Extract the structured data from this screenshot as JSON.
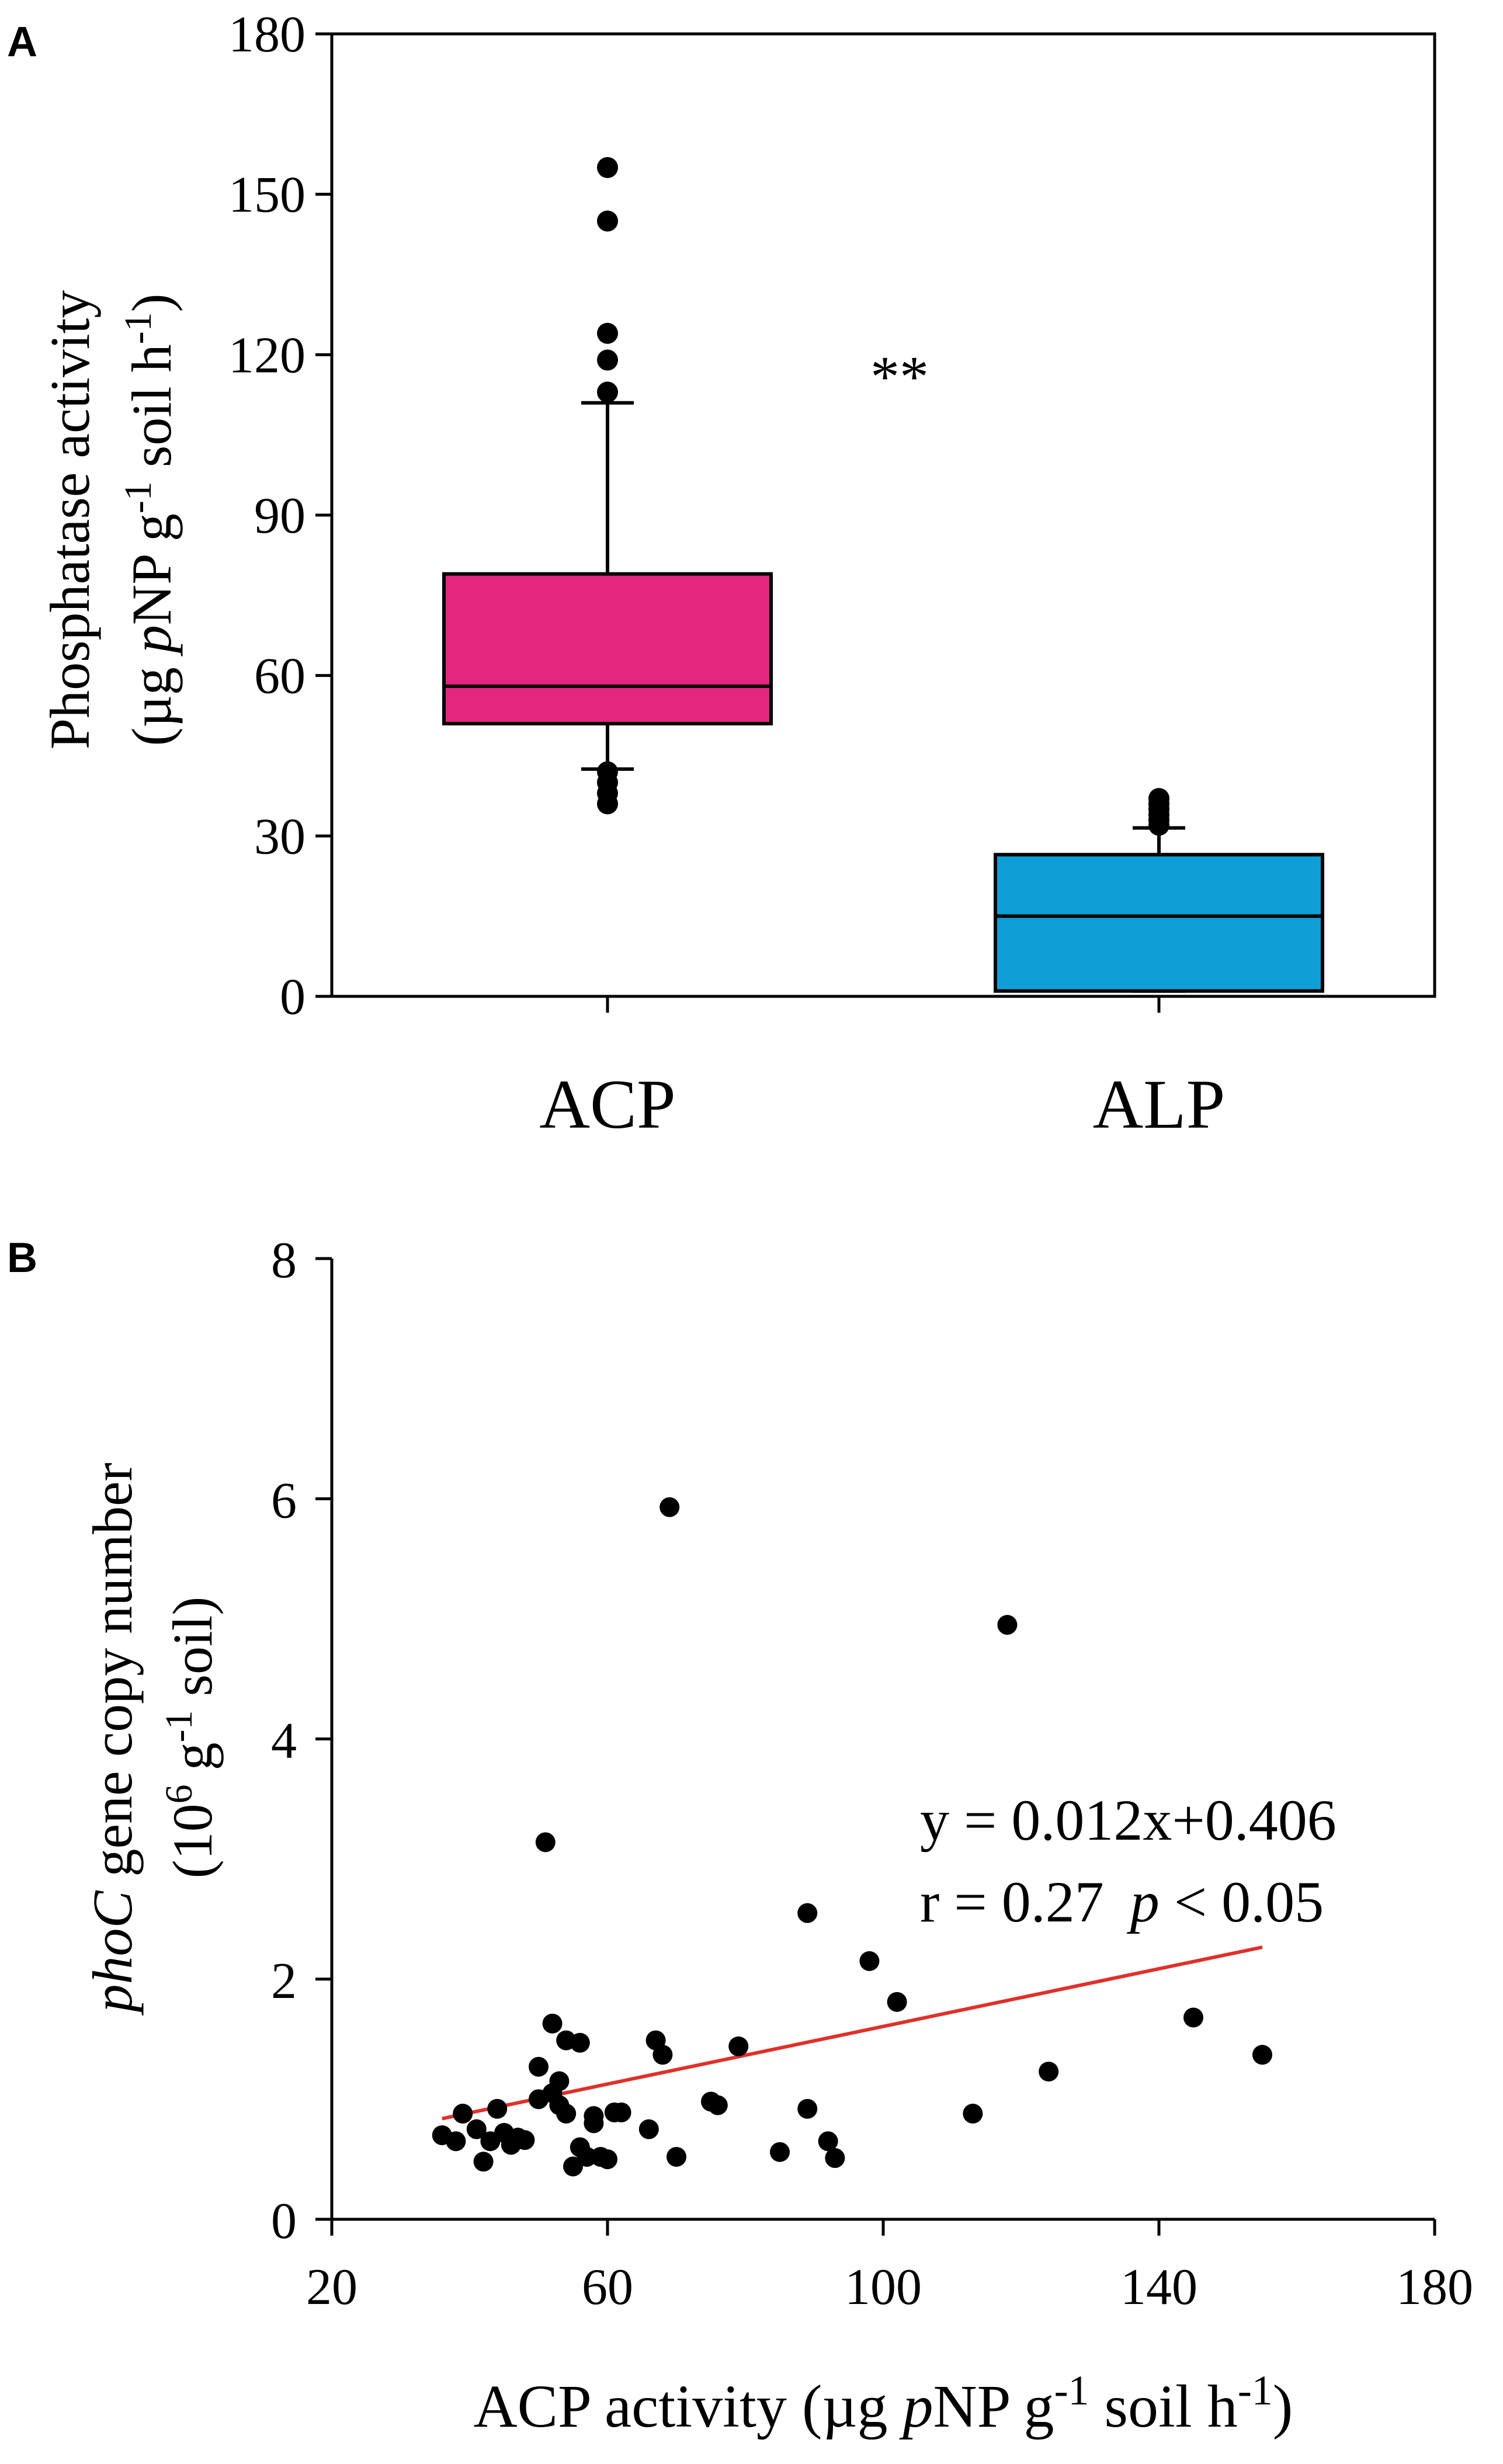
{
  "panels": {
    "a": "A",
    "b": "B"
  },
  "chart_data": [
    {
      "type": "box",
      "ylabel": {
        "line1": "Phosphatase activity",
        "line2_prefix": "(µg ",
        "line2_italic": "p",
        "line2_mid": "NP g",
        "line2_sup1": "-1",
        "line2_mid2": " soil h",
        "line2_sup2": "-1",
        "line2_suffix": ")"
      },
      "ylim": [
        0,
        180
      ],
      "yticks": [
        0,
        30,
        60,
        90,
        120,
        150,
        180
      ],
      "significance": "**",
      "colors": {
        "ACP": "#e4267f",
        "ALP": "#0f9ed6"
      },
      "categories": [
        "ACP",
        "ALP"
      ],
      "boxes": [
        {
          "name": "ACP",
          "whisker_low": 42.5,
          "q1": 51,
          "median": 58,
          "q3": 79,
          "whisker_high": 111,
          "outliers_high": [
            113,
            119,
            124,
            145,
            155
          ],
          "outliers_low": [
            36,
            38,
            40,
            42
          ]
        },
        {
          "name": "ALP",
          "whisker_low": 1,
          "q1": 1,
          "median": 15,
          "q3": 26.5,
          "whisker_high": 31.5,
          "outliers_high": [
            32,
            33,
            34,
            35,
            36,
            37
          ],
          "outliers_low": []
        }
      ]
    },
    {
      "type": "scatter",
      "xlabel": {
        "prefix": "ACP activity (µg ",
        "italic": "p",
        "mid": "NP g",
        "sup1": "-1",
        "mid2": " soil h",
        "sup2": "-1",
        "suffix": ")"
      },
      "ylabel": {
        "line1_italic": "phoC",
        "line1_rest": " gene copy number",
        "line2_prefix": "(10",
        "line2_sup0": "6",
        "line2_mid": " g",
        "line2_sup1": "-1",
        "line2_suffix": " soil)"
      },
      "xlim": [
        20,
        180
      ],
      "ylim": [
        0,
        8
      ],
      "xticks": [
        20,
        60,
        100,
        140,
        180
      ],
      "yticks": [
        0,
        2,
        4,
        6,
        8
      ],
      "equation": "y = 0.012x+0.406",
      "stats": {
        "r_text": "r = 0.27",
        "p_italic": "p",
        "p_text": " < 0.05"
      },
      "fit": {
        "slope": 0.012,
        "intercept": 0.406,
        "x_range": [
          36,
          155
        ],
        "color": "#e0302a"
      },
      "points": [
        [
          69,
          5.93
        ],
        [
          118,
          4.95
        ],
        [
          51,
          3.14
        ],
        [
          89,
          2.55
        ],
        [
          98,
          2.15
        ],
        [
          102,
          1.81
        ],
        [
          52,
          1.63
        ],
        [
          50,
          1.27
        ],
        [
          54,
          1.49
        ],
        [
          56,
          1.47
        ],
        [
          67,
          1.49
        ],
        [
          68,
          1.37
        ],
        [
          79,
          1.44
        ],
        [
          145,
          1.68
        ],
        [
          155,
          1.37
        ],
        [
          124,
          1.23
        ],
        [
          113,
          0.88
        ],
        [
          89,
          0.92
        ],
        [
          75,
          0.98
        ],
        [
          76,
          0.95
        ],
        [
          92,
          0.65
        ],
        [
          93,
          0.51
        ],
        [
          85,
          0.56
        ],
        [
          70,
          0.52
        ],
        [
          66,
          0.75
        ],
        [
          62,
          0.89
        ],
        [
          61,
          0.89
        ],
        [
          58,
          0.86
        ],
        [
          58,
          0.8
        ],
        [
          56,
          0.6
        ],
        [
          57,
          0.52
        ],
        [
          59,
          0.52
        ],
        [
          60,
          0.5
        ],
        [
          55,
          0.44
        ],
        [
          52,
          1.05
        ],
        [
          53,
          0.95
        ],
        [
          54,
          0.88
        ],
        [
          53,
          1.15
        ],
        [
          50,
          1.0
        ],
        [
          47,
          0.68
        ],
        [
          46,
          0.62
        ],
        [
          45,
          0.72
        ],
        [
          44,
          0.92
        ],
        [
          43,
          0.65
        ],
        [
          41,
          0.75
        ],
        [
          42,
          0.48
        ],
        [
          39,
          0.88
        ],
        [
          38,
          0.65
        ],
        [
          36,
          0.7
        ],
        [
          48,
          0.66
        ]
      ]
    }
  ]
}
